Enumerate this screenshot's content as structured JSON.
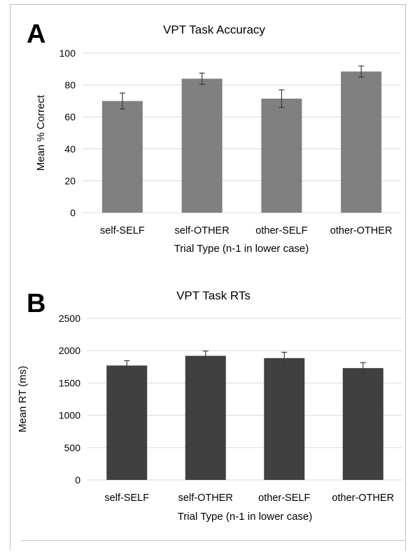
{
  "panels": [
    {
      "letter": "A"
    },
    {
      "letter": "B"
    }
  ],
  "colors": {
    "panel_a_bar": "#808080",
    "panel_b_bar": "#404040",
    "grid": "#d9d9d9",
    "error_bar": "#3a3a3a",
    "text": "#000000"
  },
  "chart_data": [
    {
      "type": "bar",
      "title": "VPT Task Accuracy",
      "xlabel": "Trial Type (n-1 in lower case)",
      "ylabel": "Mean % Correct",
      "categories": [
        "self-SELF",
        "self-OTHER",
        "other-SELF",
        "other-OTHER"
      ],
      "values": [
        70,
        84,
        71.5,
        88.5
      ],
      "errors": [
        5,
        3.5,
        5.5,
        3.5
      ],
      "ylim": [
        0,
        100
      ],
      "yticks": [
        0,
        20,
        40,
        60,
        80,
        100
      ],
      "grid": true
    },
    {
      "type": "bar",
      "title": "VPT Task RTs",
      "xlabel": "Trial Type (n-1 in lower case)",
      "ylabel": "Mean RT (ms)",
      "categories": [
        "self-SELF",
        "self-OTHER",
        "other-SELF",
        "other-OTHER"
      ],
      "values": [
        1770,
        1920,
        1885,
        1730
      ],
      "errors": [
        75,
        75,
        90,
        85
      ],
      "ylim": [
        0,
        2500
      ],
      "yticks": [
        0,
        500,
        1000,
        1500,
        2000,
        2500
      ],
      "grid": true
    }
  ]
}
